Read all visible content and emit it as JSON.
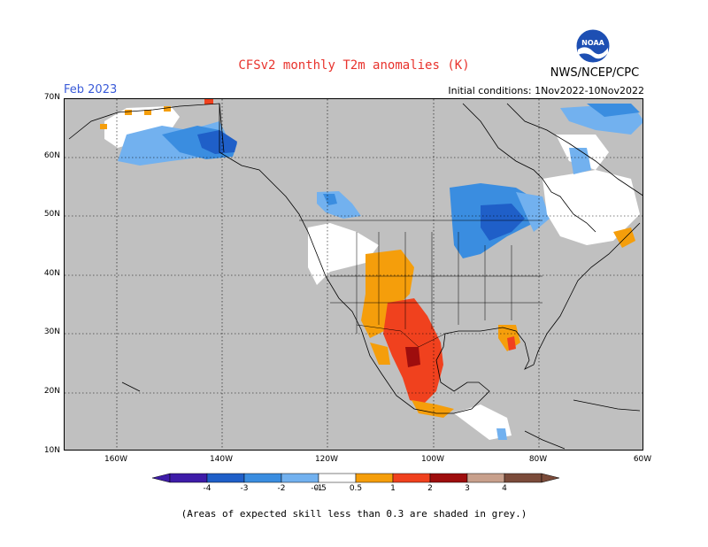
{
  "header": {
    "title": "CFSv2 monthly T2m anomalies (K)",
    "agency": "NWS/NCEP/CPC",
    "month": "Feb 2023",
    "initial_conditions": "Initial conditions: 1Nov2022-10Nov2022"
  },
  "logo": {
    "name": "noaa-logo",
    "text": "NOAA"
  },
  "map": {
    "region": "North America",
    "lat_ticks": [
      "70N",
      "60N",
      "50N",
      "40N",
      "30N",
      "20N",
      "10N"
    ],
    "lon_ticks": [
      "160W",
      "140W",
      "120W",
      "100W",
      "80W",
      "60W"
    ],
    "lat_range": [
      10,
      70
    ],
    "lon_range": [
      -170,
      -60
    ],
    "masked_color": "#c0c0c0",
    "neutral_color": "#ffffff"
  },
  "legend": {
    "labels": [
      "-4",
      "-3",
      "-2",
      "-1",
      "-0.5",
      "0.5",
      "1",
      "2",
      "3",
      "4"
    ],
    "colors": [
      "#3e1ca8",
      "#1f5fc8",
      "#3a8de0",
      "#72b1ef",
      "#ffffff",
      "#f59e0b",
      "#f0411e",
      "#9e0d0d",
      "#c8a08c",
      "#7b4b3a"
    ]
  },
  "footnote": "(Areas of expected skill less than 0.3 are shaded in grey.)"
}
